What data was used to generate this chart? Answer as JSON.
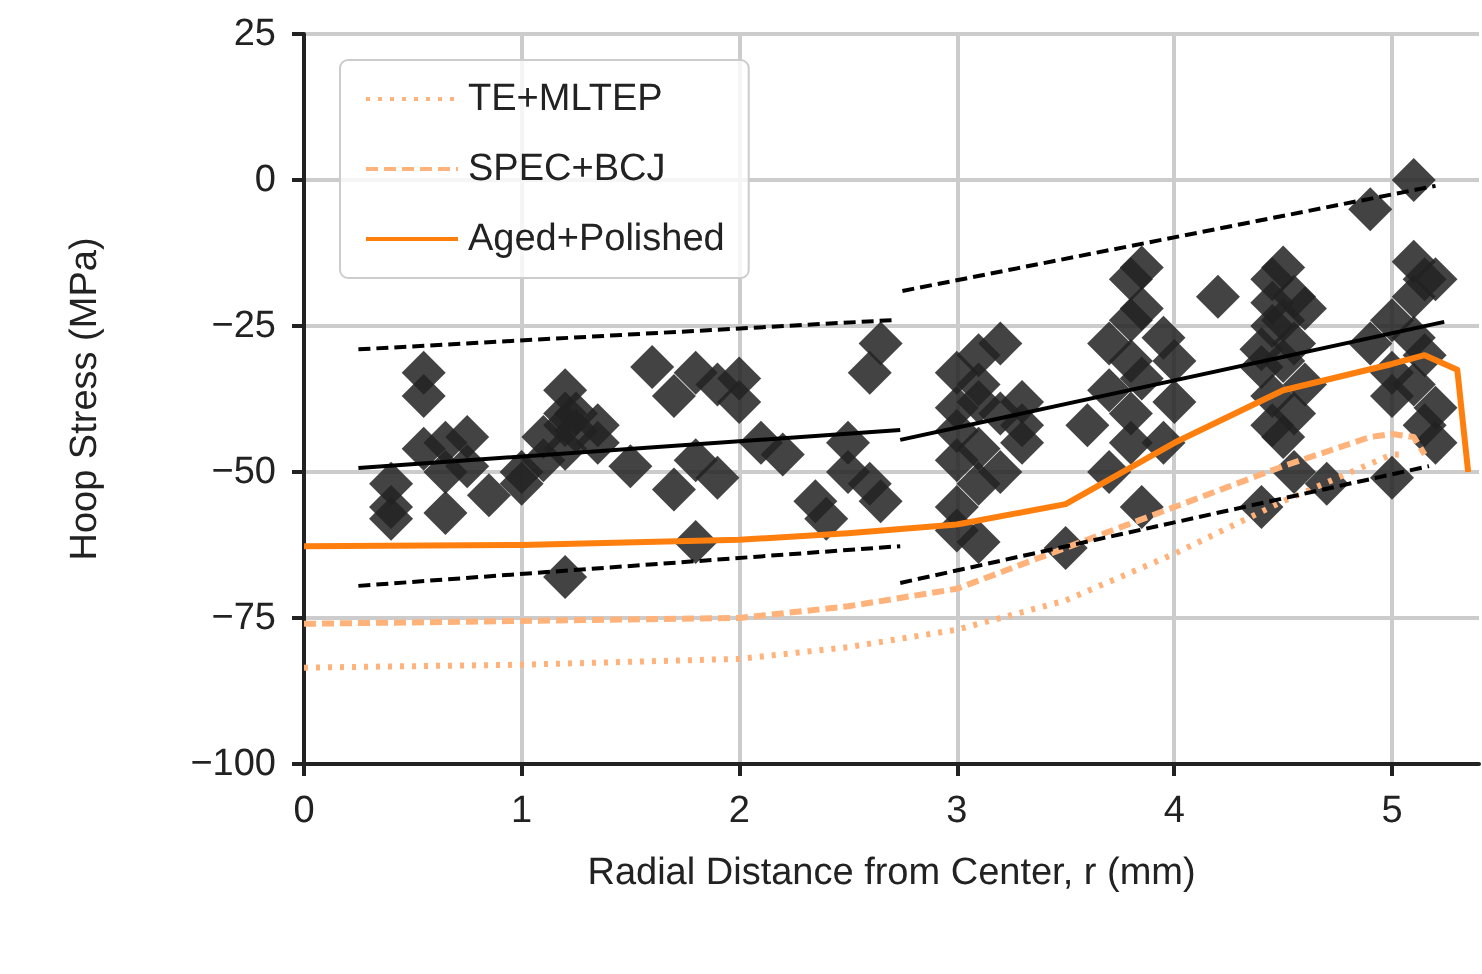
{
  "chart_data": {
    "type": "scatter",
    "xlabel": "Radial Distance from Center, r (mm)",
    "ylabel": "Hoop Stress (MPa)",
    "xlim": [
      0,
      5.4
    ],
    "ylim": [
      -100,
      25
    ],
    "xticks": [
      0,
      1,
      2,
      3,
      4,
      5
    ],
    "yticks": [
      -100,
      -75,
      -50,
      -25,
      0,
      25
    ],
    "grid": true,
    "legend": "top left",
    "series": [
      {
        "type": "line",
        "name": "TE+MLTEP",
        "color": "#ffb27a",
        "line_style": "dotted",
        "marker": "none",
        "x": [
          0,
          1,
          2,
          2.5,
          3,
          3.5,
          4,
          4.5,
          5,
          5.05
        ],
        "values": [
          -83.5,
          -83,
          -82,
          -80,
          -77,
          -72,
          -64,
          -55,
          -47,
          -47
        ]
      },
      {
        "type": "line",
        "name": "SPEC+BCJ",
        "color": "#ffb27a",
        "line_style": "dashed",
        "marker": "none",
        "x": [
          0,
          1,
          2,
          2.5,
          3,
          3.5,
          4,
          4.5,
          4.9,
          5.0,
          5.1,
          5.15
        ],
        "values": [
          -76,
          -75.5,
          -75,
          -73,
          -70,
          -63,
          -56,
          -49,
          -44,
          -43.5,
          -44,
          -47
        ]
      },
      {
        "type": "line",
        "name": "Aged+Polished",
        "color": "#ff7f0e",
        "line_style": "solid",
        "marker": "none",
        "x": [
          0,
          1,
          2,
          2.5,
          3,
          3.5,
          4,
          4.5,
          5,
          5.15,
          5.3,
          5.35
        ],
        "values": [
          -62.7,
          -62.5,
          -61.6,
          -60.5,
          -59,
          -55.5,
          -45,
          -36,
          -31.5,
          -30,
          -32.5,
          -50
        ]
      },
      {
        "type": "line",
        "color": "#000000",
        "line_style": "solid",
        "marker": "none",
        "x": [
          0.25,
          2.74
        ],
        "values": [
          -49.3,
          -42.8
        ]
      },
      {
        "type": "line",
        "color": "#000000",
        "line_style": "solid",
        "marker": "none",
        "x": [
          2.74,
          5.24
        ],
        "values": [
          -44.5,
          -24.3
        ]
      },
      {
        "type": "line",
        "color": "#000000",
        "line_style": "dashed",
        "marker": "none",
        "x": [
          0.25,
          2.7
        ],
        "values": [
          -29,
          -24
        ]
      },
      {
        "type": "line",
        "color": "#000000",
        "line_style": "dashed",
        "marker": "none",
        "x": [
          2.75,
          5.2
        ],
        "values": [
          -19,
          -1
        ]
      },
      {
        "type": "line",
        "color": "#000000",
        "line_style": "dashed",
        "marker": "none",
        "x": [
          0.25,
          2.74
        ],
        "values": [
          -69.5,
          -62.7
        ]
      },
      {
        "type": "line",
        "color": "#000000",
        "line_style": "dashed",
        "marker": "none",
        "x": [
          2.74,
          5.17
        ],
        "values": [
          -69,
          -49
        ]
      },
      {
        "color": "#222222",
        "marker": "diamond",
        "x": [
          0.4,
          0.4,
          0.4,
          0.55,
          0.55,
          0.55,
          0.65,
          0.65,
          0.65,
          0.75,
          0.75,
          0.85,
          1.0,
          1.0,
          1.1,
          1.1,
          1.2,
          1.2,
          1.2,
          1.2,
          1.2,
          1.25,
          1.25,
          1.35,
          1.35,
          1.5,
          1.6,
          1.7,
          1.7,
          1.8,
          1.8,
          1.8,
          1.9,
          1.9,
          2.0,
          2.0,
          2.1,
          2.2,
          2.35,
          2.4,
          2.5,
          2.5,
          2.6,
          2.6,
          2.65,
          2.65,
          3.0,
          3.0,
          3.0,
          3.0,
          3.0,
          3.0,
          3.1,
          3.1,
          3.1,
          3.1,
          3.1,
          3.1,
          3.2,
          3.2,
          3.2,
          3.3,
          3.3,
          3.3,
          3.5,
          3.6,
          3.7,
          3.7,
          3.7,
          3.8,
          3.8,
          3.8,
          3.8,
          3.8,
          3.85,
          3.85,
          3.85,
          3.85,
          3.95,
          3.95,
          4.0,
          4.0,
          4.2,
          4.4,
          4.4,
          4.4,
          4.45,
          4.45,
          4.45,
          4.45,
          4.45,
          4.5,
          4.5,
          4.5,
          4.5,
          4.55,
          4.55,
          4.55,
          4.55,
          4.6,
          4.6,
          4.7,
          4.9,
          4.9,
          5.0,
          5.0,
          5.0,
          5.0,
          5.1,
          5.1,
          5.1,
          5.1,
          5.1,
          5.15,
          5.15,
          5.15,
          5.2,
          5.2,
          5.2
        ],
        "values": [
          -52,
          -58,
          -56,
          -33,
          -37,
          -46,
          -45,
          -50,
          -57,
          -44,
          -49,
          -54,
          -50,
          -52,
          -48,
          -44,
          -36,
          -42,
          -40,
          -46,
          -68,
          -40,
          -43,
          -42,
          -45,
          -49,
          -32,
          -37,
          -53,
          -33,
          -48,
          -62,
          -35,
          -51,
          -34,
          -38,
          -45,
          -47,
          -55,
          -58,
          -50,
          -45,
          -33,
          -52,
          -28,
          -55,
          -33,
          -39,
          -43,
          -56,
          -60,
          -48,
          -30,
          -35,
          -38,
          -46,
          -52,
          -62,
          -28,
          -40,
          -50,
          -42,
          -45,
          -38,
          -63,
          -42,
          -28,
          -36,
          -50,
          -17,
          -24,
          -31,
          -40,
          -45,
          -15,
          -22,
          -34,
          -56,
          -27,
          -45,
          -31,
          -38,
          -20,
          -32,
          -29,
          -56,
          -17,
          -21,
          -25,
          -37,
          -42,
          -15,
          -24,
          -31,
          -44,
          -20,
          -28,
          -50,
          -40,
          -22,
          -35,
          -52,
          -5,
          -28,
          -24,
          -33,
          -37,
          -51,
          0,
          -14,
          -20,
          -27,
          -35,
          -17,
          -30,
          -42,
          -17,
          -39,
          -45
        ]
      }
    ]
  }
}
